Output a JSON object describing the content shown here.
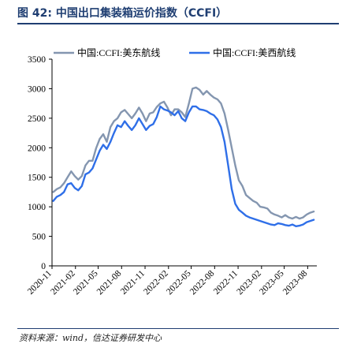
{
  "figure": {
    "title": "图 42:  中国出口集装箱运价指数（CCFI）",
    "source": "资料来源：wind，信达证券研发中心"
  },
  "chart_data": {
    "type": "line",
    "xlabel": "",
    "ylabel": "",
    "ylim": [
      0,
      3500
    ],
    "yticks": [
      0,
      500,
      1000,
      1500,
      2000,
      2500,
      3000,
      3500
    ],
    "xticks": [
      "2020-11",
      "2021-02",
      "2021-05",
      "2021-08",
      "2021-11",
      "2022-02",
      "2022-05",
      "2022-08",
      "2022-11",
      "2023-02",
      "2023-05",
      "2023-08"
    ],
    "grid": false,
    "legend_position": "top",
    "series": [
      {
        "name": "中国:CCFI:美东航线",
        "color": "#8496b0",
        "x": [
          "2020-11-06",
          "2020-11-20",
          "2020-12-04",
          "2020-12-18",
          "2021-01-01",
          "2021-01-15",
          "2021-01-29",
          "2021-02-12",
          "2021-02-26",
          "2021-03-12",
          "2021-03-26",
          "2021-04-09",
          "2021-04-23",
          "2021-05-07",
          "2021-05-21",
          "2021-06-04",
          "2021-06-18",
          "2021-07-02",
          "2021-07-16",
          "2021-07-30",
          "2021-08-13",
          "2021-08-27",
          "2021-09-10",
          "2021-09-24",
          "2021-10-08",
          "2021-10-22",
          "2021-11-05",
          "2021-11-19",
          "2021-12-03",
          "2021-12-17",
          "2021-12-31",
          "2022-01-14",
          "2022-01-28",
          "2022-02-11",
          "2022-02-25",
          "2022-03-11",
          "2022-03-25",
          "2022-04-08",
          "2022-04-22",
          "2022-05-06",
          "2022-05-20",
          "2022-06-03",
          "2022-06-17",
          "2022-07-01",
          "2022-07-15",
          "2022-07-29",
          "2022-08-12",
          "2022-08-26",
          "2022-09-09",
          "2022-09-23",
          "2022-10-07",
          "2022-10-21",
          "2022-11-04",
          "2022-11-18",
          "2022-12-02",
          "2022-12-16",
          "2022-12-30",
          "2023-01-13",
          "2023-01-27",
          "2023-02-10",
          "2023-02-24",
          "2023-03-10",
          "2023-03-24",
          "2023-04-07",
          "2023-04-21",
          "2023-05-05",
          "2023-05-19",
          "2023-06-02",
          "2023-06-16",
          "2023-06-30",
          "2023-07-14",
          "2023-07-28",
          "2023-08-11",
          "2023-08-25"
        ],
        "values": [
          1250,
          1300,
          1330,
          1400,
          1500,
          1600,
          1520,
          1460,
          1520,
          1700,
          1780,
          1780,
          1990,
          2150,
          2230,
          2100,
          2350,
          2450,
          2500,
          2600,
          2640,
          2570,
          2500,
          2580,
          2680,
          2580,
          2450,
          2580,
          2600,
          2690,
          2750,
          2780,
          2680,
          2550,
          2650,
          2650,
          2600,
          2520,
          2750,
          3000,
          3020,
          2980,
          2900,
          2960,
          2900,
          2850,
          2820,
          2750,
          2580,
          2300,
          2000,
          1700,
          1450,
          1350,
          1200,
          1150,
          1100,
          1070,
          1000,
          990,
          970,
          900,
          870,
          850,
          820,
          860,
          820,
          800,
          830,
          800,
          820,
          870,
          900,
          920
        ]
      },
      {
        "name": "中国:CCFI:美西航线",
        "color": "#2f6fe8",
        "x": [
          "2020-11-06",
          "2020-11-20",
          "2020-12-04",
          "2020-12-18",
          "2021-01-01",
          "2021-01-15",
          "2021-01-29",
          "2021-02-12",
          "2021-02-26",
          "2021-03-12",
          "2021-03-26",
          "2021-04-09",
          "2021-04-23",
          "2021-05-07",
          "2021-05-21",
          "2021-06-04",
          "2021-06-18",
          "2021-07-02",
          "2021-07-16",
          "2021-07-30",
          "2021-08-13",
          "2021-08-27",
          "2021-09-10",
          "2021-09-24",
          "2021-10-08",
          "2021-10-22",
          "2021-11-05",
          "2021-11-19",
          "2021-12-03",
          "2021-12-17",
          "2021-12-31",
          "2022-01-14",
          "2022-01-28",
          "2022-02-11",
          "2022-02-25",
          "2022-03-11",
          "2022-03-25",
          "2022-04-08",
          "2022-04-22",
          "2022-05-06",
          "2022-05-20",
          "2022-06-03",
          "2022-06-17",
          "2022-07-01",
          "2022-07-15",
          "2022-07-29",
          "2022-08-12",
          "2022-08-26",
          "2022-09-09",
          "2022-09-23",
          "2022-10-07",
          "2022-10-21",
          "2022-11-04",
          "2022-11-18",
          "2022-12-02",
          "2022-12-16",
          "2022-12-30",
          "2023-01-13",
          "2023-01-27",
          "2023-02-10",
          "2023-02-24",
          "2023-03-10",
          "2023-03-24",
          "2023-04-07",
          "2023-04-21",
          "2023-05-05",
          "2023-05-19",
          "2023-06-02",
          "2023-06-16",
          "2023-06-30",
          "2023-07-14",
          "2023-07-28",
          "2023-08-11",
          "2023-08-25"
        ],
        "values": [
          1100,
          1170,
          1200,
          1250,
          1380,
          1400,
          1320,
          1280,
          1350,
          1550,
          1580,
          1650,
          1800,
          1950,
          2050,
          1980,
          2100,
          2250,
          2380,
          2350,
          2450,
          2370,
          2300,
          2380,
          2500,
          2400,
          2300,
          2370,
          2400,
          2520,
          2700,
          2650,
          2630,
          2600,
          2550,
          2620,
          2500,
          2450,
          2600,
          2700,
          2700,
          2650,
          2640,
          2620,
          2580,
          2550,
          2480,
          2350,
          2100,
          1700,
          1300,
          1050,
          950,
          900,
          850,
          820,
          800,
          780,
          760,
          740,
          720,
          700,
          690,
          720,
          710,
          690,
          680,
          700,
          670,
          680,
          700,
          740,
          760,
          780
        ]
      }
    ]
  }
}
